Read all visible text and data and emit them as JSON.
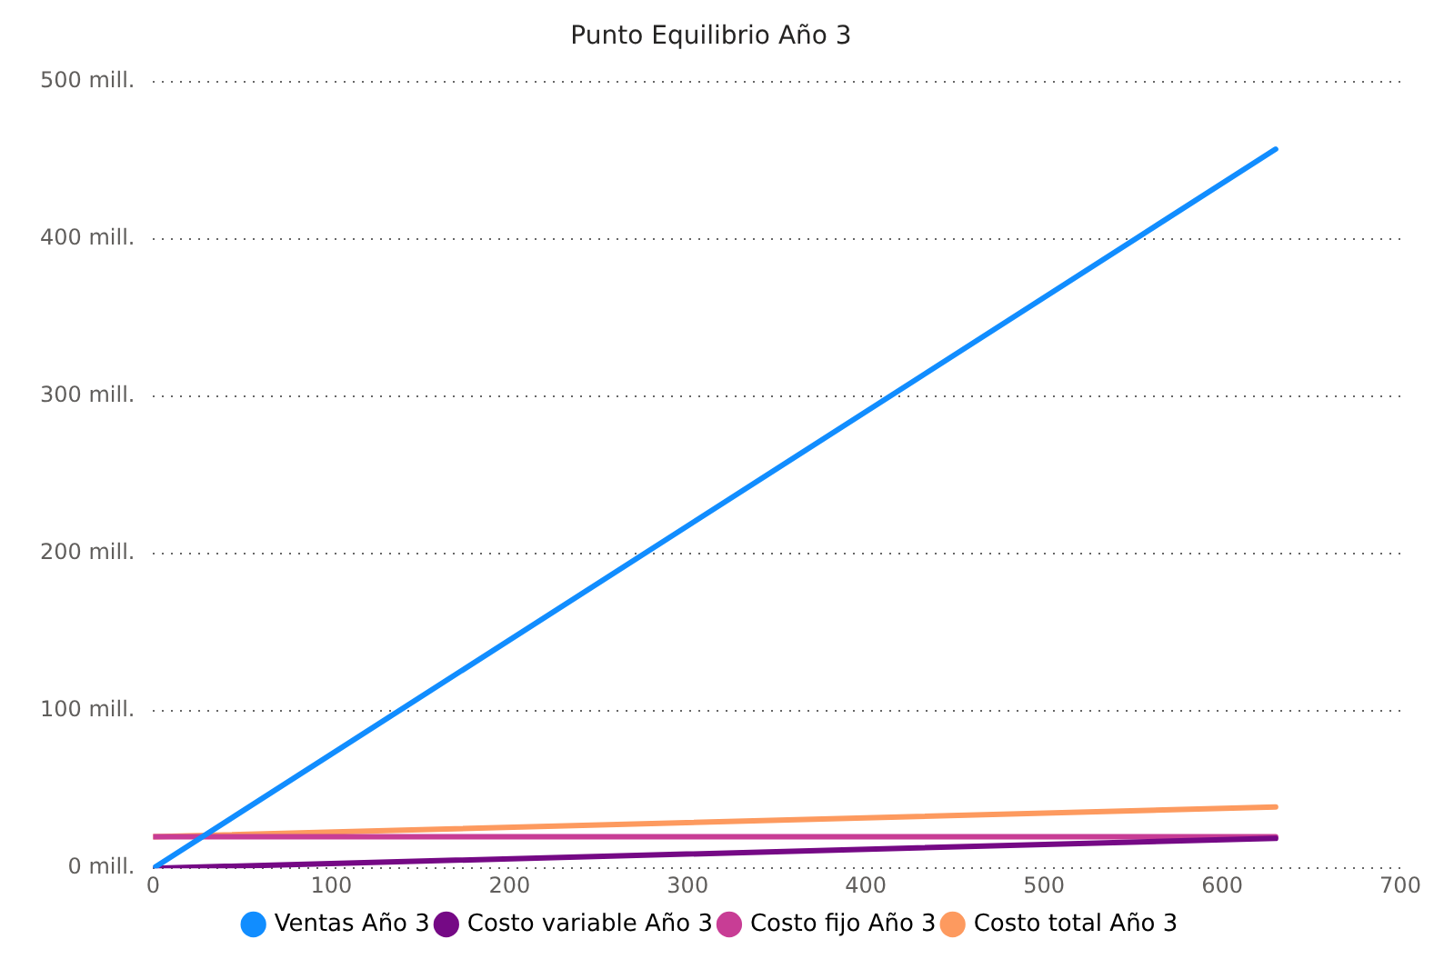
{
  "chart_data": {
    "type": "line",
    "title": "Punto Equilibrio Año 3",
    "xlim": [
      0,
      700
    ],
    "xticks": [
      0,
      100,
      200,
      300,
      400,
      500,
      600,
      700
    ],
    "ylim": [
      0,
      500
    ],
    "yticks": [
      {
        "value": 0,
        "label": "0 mill."
      },
      {
        "value": 100,
        "label": "100 mill."
      },
      {
        "value": 200,
        "label": "200 mill."
      },
      {
        "value": 300,
        "label": "300 mill."
      },
      {
        "value": 400,
        "label": "400 mill."
      },
      {
        "value": 500,
        "label": "500 mill."
      }
    ],
    "grid": "y",
    "legend": "bottom",
    "marker": "none",
    "line_style": "solid",
    "x": [
      0,
      630
    ],
    "series": [
      {
        "name": "Ventas Año 3",
        "color": "#118dff",
        "values": [
          0,
          457
        ]
      },
      {
        "name": "Costo variable Año 3",
        "color": "#750985",
        "values": [
          0,
          19
        ]
      },
      {
        "name": "Costo fijo Año 3",
        "color": "#c83d95",
        "values": [
          20,
          20
        ]
      },
      {
        "name": "Costo total Año 3",
        "color": "#fd9a5f",
        "values": [
          20,
          39
        ]
      }
    ]
  }
}
